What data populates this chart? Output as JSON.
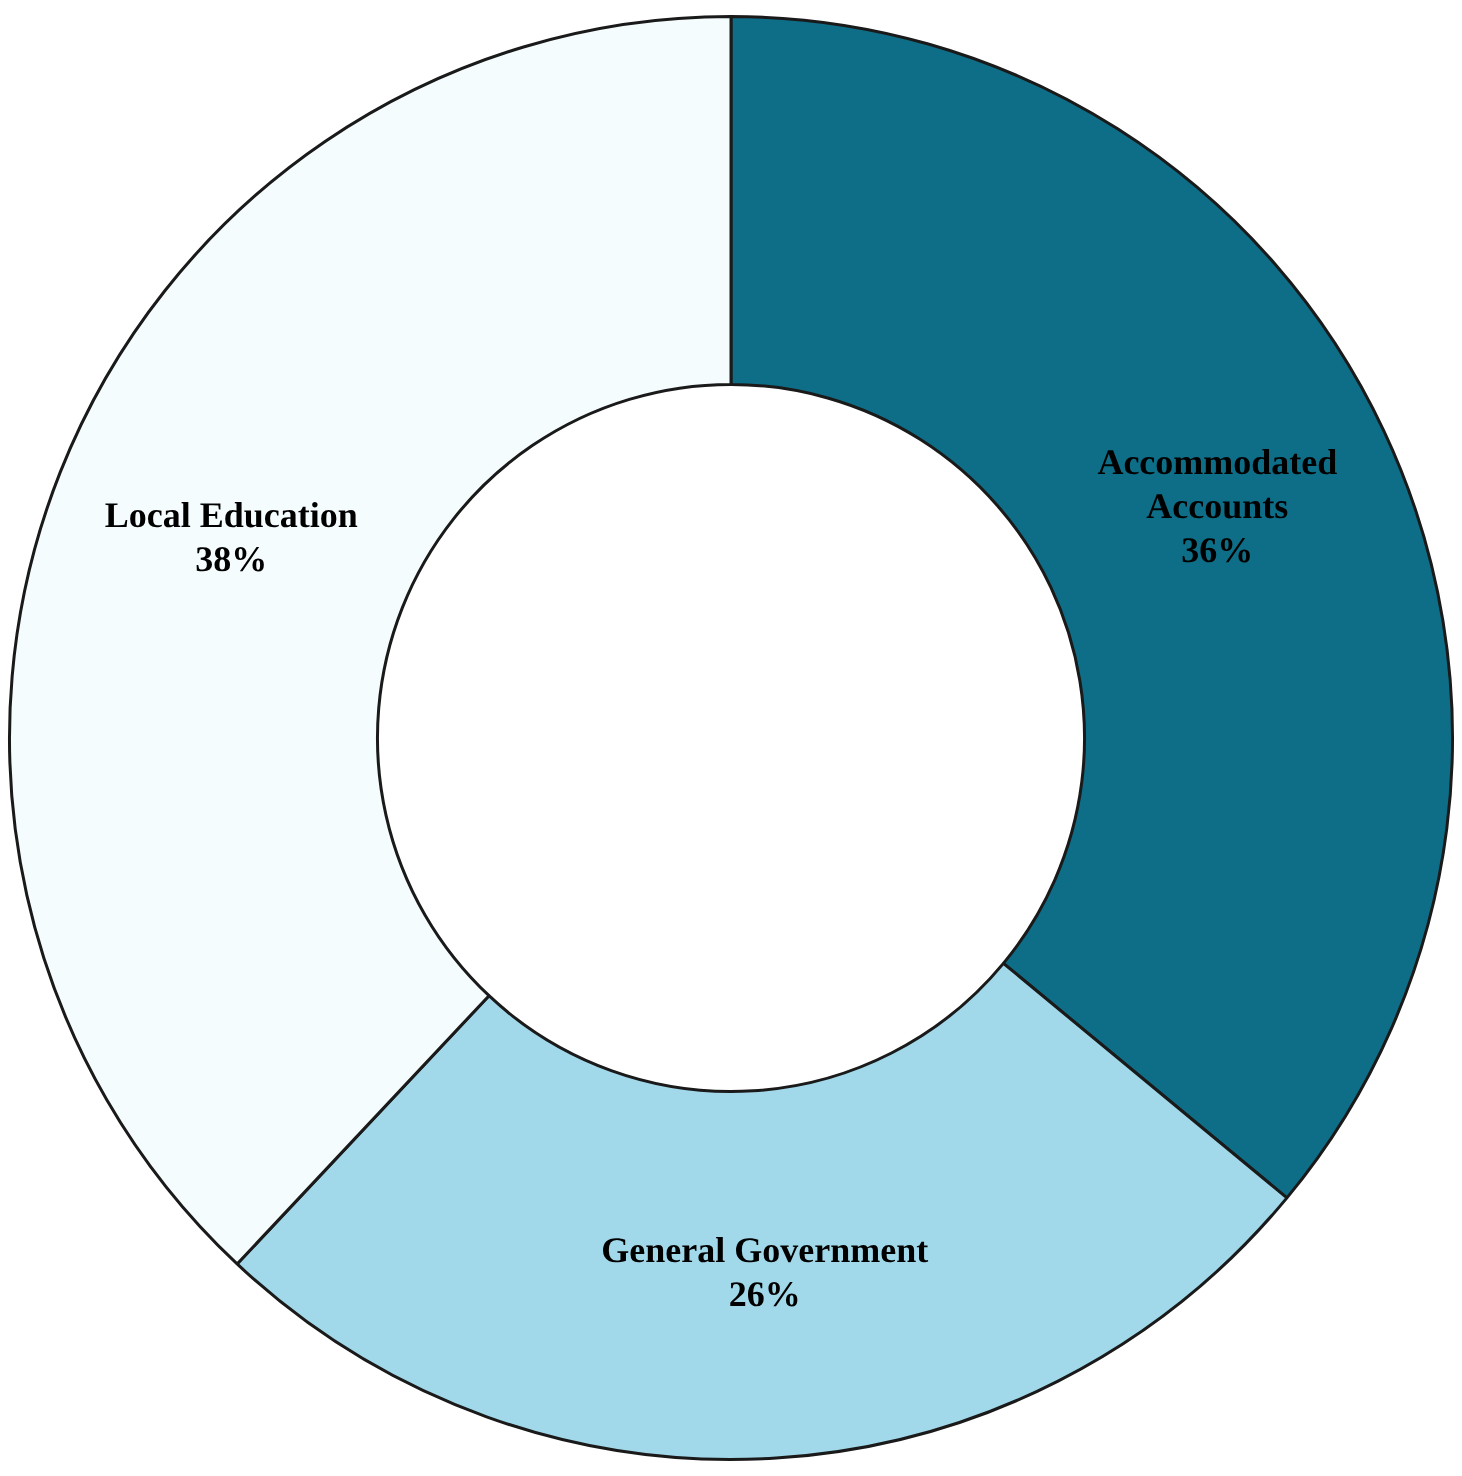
{
  "chart_data": {
    "type": "donut",
    "categories": [
      "Accommodated Accounts",
      "General Government",
      "Local Education"
    ],
    "values": [
      36,
      26,
      38
    ],
    "value_labels": [
      "36%",
      "26%",
      "38%"
    ],
    "colors": [
      "#0f6e87",
      "#a2d9ea",
      "#f5fcfe"
    ],
    "legend": false
  }
}
